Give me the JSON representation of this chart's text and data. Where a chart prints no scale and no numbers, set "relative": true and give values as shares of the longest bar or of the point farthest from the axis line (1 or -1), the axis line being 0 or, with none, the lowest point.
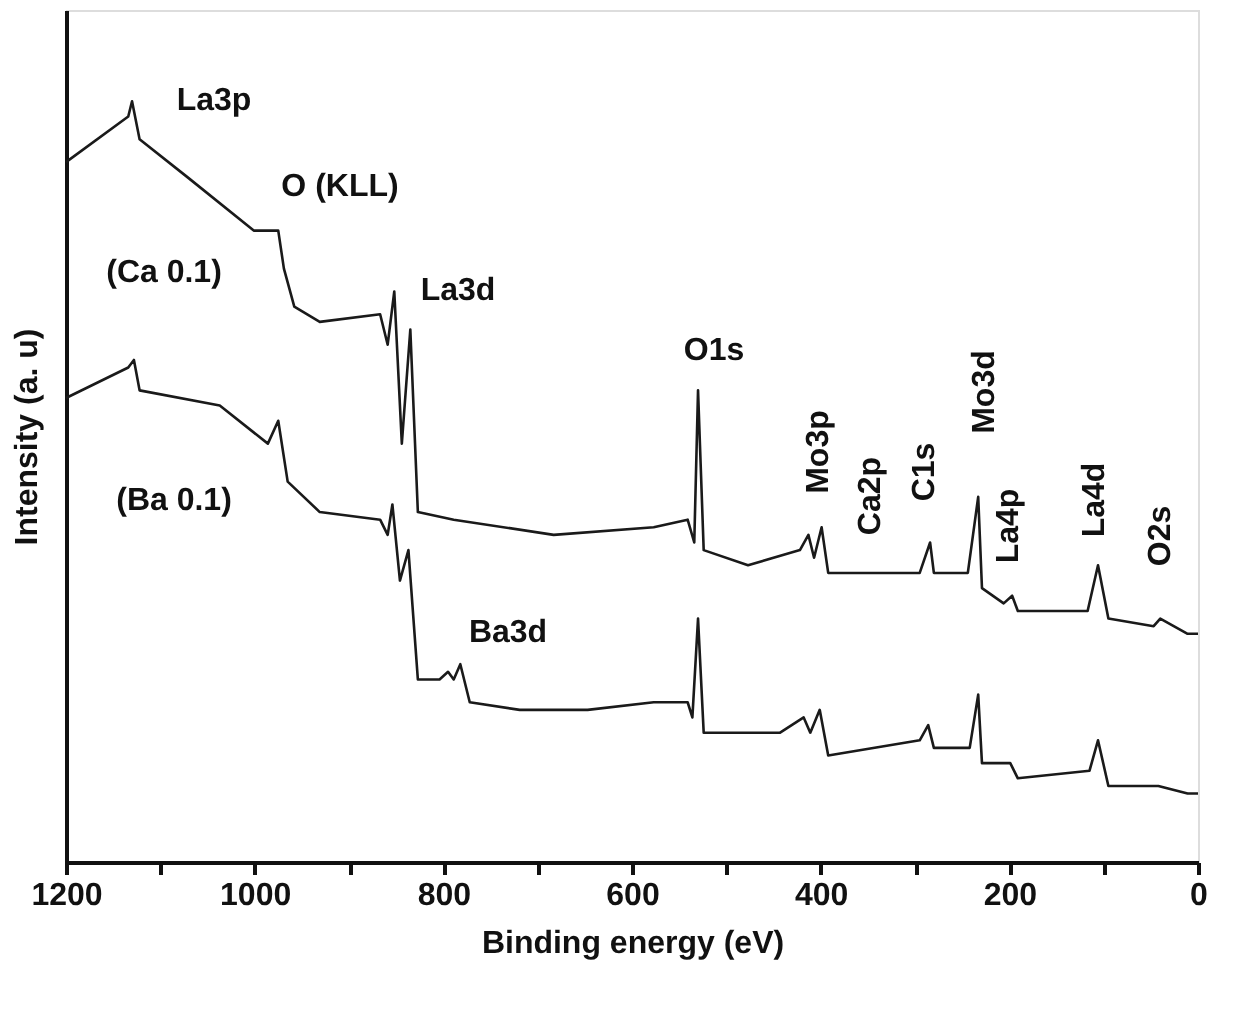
{
  "chart_data": {
    "type": "line",
    "relative": true,
    "xlabel": "Binding energy (eV)",
    "ylabel": "Intensity (a. u)",
    "xlim": [
      1200,
      0
    ],
    "xticks": [
      1200,
      {
        "value": 1100,
        "label": null
      },
      1000,
      {
        "value": 900,
        "label": null
      },
      800,
      {
        "value": 700,
        "label": null
      },
      600,
      {
        "value": 500,
        "label": null
      },
      400,
      {
        "value": 300,
        "label": null
      },
      200,
      {
        "value": 100,
        "label": null
      },
      0
    ],
    "grid": false,
    "legend": false,
    "marker": "none",
    "line_style": "solid",
    "series": [
      {
        "color": "#1a1a1a",
        "x": [
          1200,
          1134,
          1130,
          1122,
          1071,
          1001,
          975,
          969,
          958,
          931,
          867,
          859,
          852,
          844,
          835,
          827,
          789,
          683,
          577,
          541,
          534,
          530,
          524,
          477,
          422,
          413,
          407,
          399,
          392,
          337,
          295,
          284,
          280,
          244,
          233,
          229,
          206,
          197,
          191,
          117,
          106,
          95,
          47,
          40,
          11,
          0
        ],
        "values": [
          0.92,
          0.98,
          1.0,
          0.95,
          0.9,
          0.83,
          0.83,
          0.78,
          0.73,
          0.71,
          0.72,
          0.68,
          0.75,
          0.55,
          0.7,
          0.46,
          0.45,
          0.43,
          0.44,
          0.45,
          0.42,
          0.62,
          0.41,
          0.39,
          0.41,
          0.43,
          0.4,
          0.44,
          0.38,
          0.38,
          0.38,
          0.42,
          0.38,
          0.38,
          0.48,
          0.36,
          0.34,
          0.35,
          0.33,
          0.33,
          0.39,
          0.32,
          0.31,
          0.32,
          0.3,
          0.3
        ]
      },
      {
        "color": "#1a1a1a",
        "x": [
          1200,
          1134,
          1128,
          1122,
          1037,
          986,
          975,
          965,
          931,
          867,
          859,
          854,
          846,
          837,
          827,
          804,
          795,
          789,
          782,
          772,
          719,
          647,
          577,
          541,
          536,
          530,
          524,
          443,
          418,
          411,
          401,
          392,
          295,
          286,
          280,
          242,
          233,
          229,
          199,
          191,
          115,
          106,
          95,
          42,
          11,
          0
        ],
        "values": [
          0.61,
          0.65,
          0.66,
          0.62,
          0.6,
          0.55,
          0.58,
          0.5,
          0.46,
          0.45,
          0.43,
          0.47,
          0.37,
          0.41,
          0.24,
          0.24,
          0.25,
          0.24,
          0.26,
          0.21,
          0.2,
          0.2,
          0.21,
          0.21,
          0.19,
          0.32,
          0.17,
          0.17,
          0.19,
          0.17,
          0.2,
          0.14,
          0.16,
          0.18,
          0.15,
          0.15,
          0.22,
          0.13,
          0.13,
          0.11,
          0.12,
          0.16,
          0.1,
          0.1,
          0.09,
          0.09
        ]
      }
    ],
    "annotations": [
      "La3p",
      "O (KLL)",
      "(Ca 0.1)",
      "La3d",
      "(Ba 0.1)",
      "Ba3d",
      "O1s",
      "Mo3p",
      "Ca2p",
      "C1s",
      "Mo3d",
      "La4p",
      "La4d",
      "O2s"
    ]
  }
}
